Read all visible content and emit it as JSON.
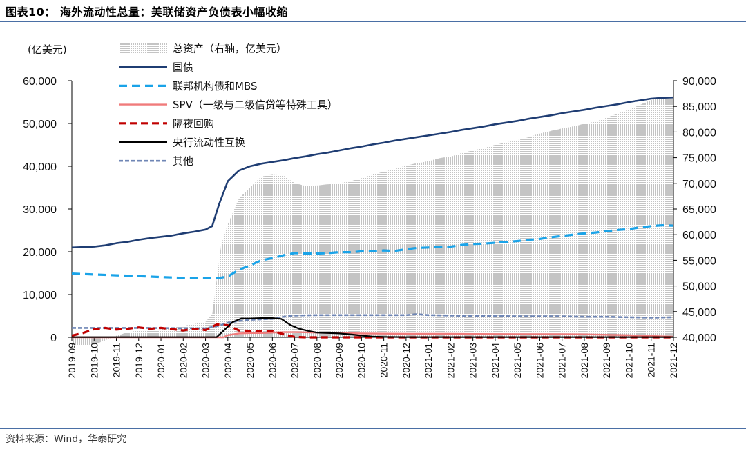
{
  "figure_title": "图表10：  海外流动性总量：美联储资产负债表小幅收缩",
  "source": "资料来源：Wind，华泰研究",
  "colors": {
    "rule": "#4a6fa5",
    "treasury": "#1f3d73",
    "agency_mbs": "#1aa3e8",
    "spv": "#f07b7b",
    "overnight_repo": "#c00000",
    "swap_lines": "#000000",
    "other": "#6f86b5",
    "total_assets_fill": "#b5b5b5"
  },
  "chart_data": {
    "type": "area+line",
    "left_unit": "(亿美元)",
    "left_ylim": [
      0,
      60000
    ],
    "left_ticks": [
      "0",
      "10,000",
      "20,000",
      "30,000",
      "40,000",
      "50,000",
      "60,000"
    ],
    "right_ylim": [
      40000,
      90000
    ],
    "right_ticks": [
      "40,000",
      "45,000",
      "50,000",
      "55,000",
      "60,000",
      "65,000",
      "70,000",
      "75,000",
      "80,000",
      "85,000",
      "90,000"
    ],
    "grid": false,
    "legend_position": "top-center",
    "x_labels": [
      "2019-09",
      "2019-10",
      "2019-11",
      "2019-12",
      "2020-01",
      "2020-02",
      "2020-03",
      "2020-04",
      "2020-05",
      "2020-06",
      "2020-07",
      "2020-08",
      "2020-09",
      "2020-10",
      "2020-11",
      "2020-12",
      "2021-01",
      "2021-02",
      "2021-03",
      "2021-04",
      "2021-05",
      "2021-06",
      "2021-07",
      "2021-08",
      "2021-09",
      "2021-10",
      "2021-11",
      "2021-12"
    ],
    "x_start": "2019-09",
    "x_end": "2021-12",
    "series": [
      {
        "key": "total",
        "name": "总资产（右轴，亿美元）",
        "style": "dotted-area",
        "axis": "right",
        "points": [
          [
            0,
            38400
          ],
          [
            0.5,
            38450
          ],
          [
            1,
            38600
          ],
          [
            1.5,
            39400
          ],
          [
            2,
            40300
          ],
          [
            2.5,
            40950
          ],
          [
            3,
            41300
          ],
          [
            4,
            41500
          ],
          [
            5,
            42200
          ],
          [
            6,
            43000
          ],
          [
            6.3,
            44500
          ],
          [
            6.7,
            58000
          ],
          [
            7,
            62000
          ],
          [
            7.5,
            67000
          ],
          [
            8,
            69200
          ],
          [
            8.5,
            71300
          ],
          [
            9,
            71700
          ],
          [
            9.5,
            71500
          ],
          [
            10,
            70000
          ],
          [
            10.5,
            69500
          ],
          [
            11,
            69600
          ],
          [
            11.5,
            69800
          ],
          [
            12,
            70000
          ],
          [
            12.5,
            70400
          ],
          [
            13,
            71000
          ],
          [
            13.5,
            71700
          ],
          [
            14,
            72300
          ],
          [
            14.5,
            72800
          ],
          [
            15,
            73500
          ],
          [
            15.5,
            73900
          ],
          [
            16,
            74300
          ],
          [
            16.5,
            74900
          ],
          [
            17,
            75200
          ],
          [
            17.5,
            75900
          ],
          [
            18,
            76400
          ],
          [
            18.5,
            76900
          ],
          [
            19,
            77500
          ],
          [
            19.5,
            78000
          ],
          [
            20,
            78400
          ],
          [
            20.5,
            79000
          ],
          [
            21,
            79700
          ],
          [
            21.5,
            80200
          ],
          [
            22,
            80700
          ],
          [
            22.5,
            81100
          ],
          [
            23,
            81600
          ],
          [
            23.5,
            82000
          ],
          [
            24,
            82800
          ],
          [
            24.5,
            83600
          ],
          [
            25,
            84400
          ],
          [
            25.5,
            85300
          ],
          [
            26,
            86200
          ],
          [
            26.5,
            86900
          ],
          [
            27,
            86800
          ]
        ]
      },
      {
        "key": "treasury",
        "name": "国债",
        "style": "solid",
        "axis": "left",
        "points": [
          [
            0,
            21000
          ],
          [
            0.5,
            21100
          ],
          [
            1,
            21200
          ],
          [
            1.5,
            21500
          ],
          [
            2,
            22000
          ],
          [
            2.5,
            22300
          ],
          [
            3,
            22800
          ],
          [
            3.5,
            23200
          ],
          [
            4,
            23500
          ],
          [
            4.5,
            23800
          ],
          [
            5,
            24300
          ],
          [
            5.5,
            24700
          ],
          [
            6,
            25200
          ],
          [
            6.3,
            26000
          ],
          [
            6.6,
            31000
          ],
          [
            7,
            36500
          ],
          [
            7.5,
            39000
          ],
          [
            8,
            40000
          ],
          [
            8.5,
            40600
          ],
          [
            9,
            41000
          ],
          [
            9.5,
            41400
          ],
          [
            10,
            41900
          ],
          [
            10.5,
            42300
          ],
          [
            11,
            42800
          ],
          [
            11.5,
            43200
          ],
          [
            12,
            43700
          ],
          [
            12.5,
            44200
          ],
          [
            13,
            44600
          ],
          [
            13.5,
            45100
          ],
          [
            14,
            45500
          ],
          [
            14.5,
            46000
          ],
          [
            15,
            46400
          ],
          [
            15.5,
            46800
          ],
          [
            16,
            47200
          ],
          [
            16.5,
            47600
          ],
          [
            17,
            48000
          ],
          [
            17.5,
            48500
          ],
          [
            18,
            48900
          ],
          [
            18.5,
            49300
          ],
          [
            19,
            49800
          ],
          [
            19.5,
            50200
          ],
          [
            20,
            50600
          ],
          [
            20.5,
            51100
          ],
          [
            21,
            51500
          ],
          [
            21.5,
            51900
          ],
          [
            22,
            52400
          ],
          [
            22.5,
            52800
          ],
          [
            23,
            53200
          ],
          [
            23.5,
            53700
          ],
          [
            24,
            54100
          ],
          [
            24.5,
            54500
          ],
          [
            25,
            55000
          ],
          [
            25.5,
            55400
          ],
          [
            26,
            55800
          ],
          [
            26.5,
            56000
          ],
          [
            27,
            56100
          ]
        ]
      },
      {
        "key": "mbs",
        "name": "联邦机构债和MBS",
        "style": "dashed",
        "axis": "left",
        "points": [
          [
            0,
            14900
          ],
          [
            1,
            14700
          ],
          [
            2,
            14500
          ],
          [
            3,
            14300
          ],
          [
            4,
            14100
          ],
          [
            5,
            13900
          ],
          [
            6,
            13800
          ],
          [
            6.5,
            13800
          ],
          [
            7,
            14200
          ],
          [
            7.5,
            15800
          ],
          [
            8,
            16800
          ],
          [
            8.5,
            18000
          ],
          [
            9,
            18500
          ],
          [
            9.5,
            19200
          ],
          [
            10,
            19700
          ],
          [
            10.5,
            19600
          ],
          [
            11,
            19600
          ],
          [
            11.5,
            19700
          ],
          [
            12,
            19900
          ],
          [
            12.5,
            19900
          ],
          [
            13,
            20100
          ],
          [
            13.5,
            20100
          ],
          [
            14,
            20300
          ],
          [
            14.5,
            20200
          ],
          [
            15,
            20600
          ],
          [
            15.5,
            20900
          ],
          [
            16,
            21000
          ],
          [
            16.5,
            21100
          ],
          [
            17,
            21200
          ],
          [
            17.5,
            21600
          ],
          [
            18,
            21800
          ],
          [
            18.5,
            21900
          ],
          [
            19,
            22100
          ],
          [
            19.5,
            22300
          ],
          [
            20,
            22500
          ],
          [
            20.5,
            22800
          ],
          [
            21,
            23000
          ],
          [
            21.5,
            23400
          ],
          [
            22,
            23700
          ],
          [
            22.5,
            24000
          ],
          [
            23,
            24300
          ],
          [
            23.5,
            24500
          ],
          [
            24,
            24800
          ],
          [
            24.5,
            25100
          ],
          [
            25,
            25300
          ],
          [
            25.5,
            25700
          ],
          [
            26,
            26000
          ],
          [
            26.5,
            26200
          ],
          [
            27,
            26100
          ]
        ]
      },
      {
        "key": "spv",
        "name": "SPV（一级与二级信贷等特殊工具）",
        "style": "solid",
        "axis": "left",
        "points": [
          [
            0,
            0
          ],
          [
            6.8,
            0
          ],
          [
            7,
            500
          ],
          [
            7.5,
            900
          ],
          [
            8,
            1000
          ],
          [
            8.5,
            1000
          ],
          [
            9,
            1100
          ],
          [
            9.5,
            1200
          ],
          [
            10,
            1200
          ],
          [
            11,
            1100
          ],
          [
            12,
            1000
          ],
          [
            13,
            900
          ],
          [
            14,
            850
          ],
          [
            15,
            800
          ],
          [
            16,
            800
          ],
          [
            17,
            800
          ],
          [
            18,
            780
          ],
          [
            19,
            760
          ],
          [
            20,
            750
          ],
          [
            21,
            750
          ],
          [
            22,
            730
          ],
          [
            23,
            700
          ],
          [
            24,
            600
          ],
          [
            25,
            500
          ],
          [
            26,
            300
          ],
          [
            27,
            150
          ]
        ]
      },
      {
        "key": "repo",
        "name": "隔夜回购",
        "style": "dashed",
        "axis": "left",
        "points": [
          [
            0,
            400
          ],
          [
            0.5,
            1000
          ],
          [
            1,
            1900
          ],
          [
            1.5,
            2200
          ],
          [
            2,
            1800
          ],
          [
            2.5,
            2000
          ],
          [
            3,
            2300
          ],
          [
            3.5,
            2000
          ],
          [
            4,
            2200
          ],
          [
            4.5,
            1900
          ],
          [
            5,
            1600
          ],
          [
            5.5,
            2000
          ],
          [
            6,
            1700
          ],
          [
            6.5,
            3000
          ],
          [
            7,
            2800
          ],
          [
            7.5,
            1600
          ],
          [
            8,
            1500
          ],
          [
            8.5,
            1400
          ],
          [
            9,
            1500
          ],
          [
            9.5,
            700
          ],
          [
            10,
            100
          ],
          [
            10.5,
            0
          ],
          [
            27,
            0
          ]
        ]
      },
      {
        "key": "swap",
        "name": "央行流动性互换",
        "style": "solid",
        "axis": "left",
        "points": [
          [
            0,
            50
          ],
          [
            6.5,
            50
          ],
          [
            6.8,
            1500
          ],
          [
            7.2,
            3500
          ],
          [
            7.6,
            4400
          ],
          [
            8,
            4400
          ],
          [
            8.5,
            4500
          ],
          [
            9,
            4500
          ],
          [
            9.4,
            4300
          ],
          [
            9.8,
            2900
          ],
          [
            10.2,
            2000
          ],
          [
            10.6,
            1500
          ],
          [
            11,
            1100
          ],
          [
            11.5,
            1000
          ],
          [
            12,
            900
          ],
          [
            12.5,
            700
          ],
          [
            13,
            400
          ],
          [
            13.5,
            200
          ],
          [
            14,
            100
          ],
          [
            15,
            50
          ],
          [
            27,
            50
          ]
        ]
      },
      {
        "key": "other",
        "name": "其他",
        "style": "dashed",
        "axis": "left",
        "points": [
          [
            0,
            2200
          ],
          [
            3,
            2200
          ],
          [
            6,
            2100
          ],
          [
            6.6,
            2700
          ],
          [
            7,
            3400
          ],
          [
            7.5,
            3800
          ],
          [
            8,
            4100
          ],
          [
            9,
            4300
          ],
          [
            9.5,
            4800
          ],
          [
            10,
            5100
          ],
          [
            11,
            5200
          ],
          [
            12,
            5200
          ],
          [
            13,
            5200
          ],
          [
            14,
            5200
          ],
          [
            15,
            5200
          ],
          [
            15.5,
            5400
          ],
          [
            16,
            5200
          ],
          [
            17,
            5100
          ],
          [
            18,
            5000
          ],
          [
            19,
            5000
          ],
          [
            20,
            4900
          ],
          [
            21,
            4900
          ],
          [
            22,
            4900
          ],
          [
            23,
            4800
          ],
          [
            24,
            4800
          ],
          [
            25,
            4700
          ],
          [
            26,
            4600
          ],
          [
            27,
            4700
          ]
        ]
      }
    ]
  }
}
